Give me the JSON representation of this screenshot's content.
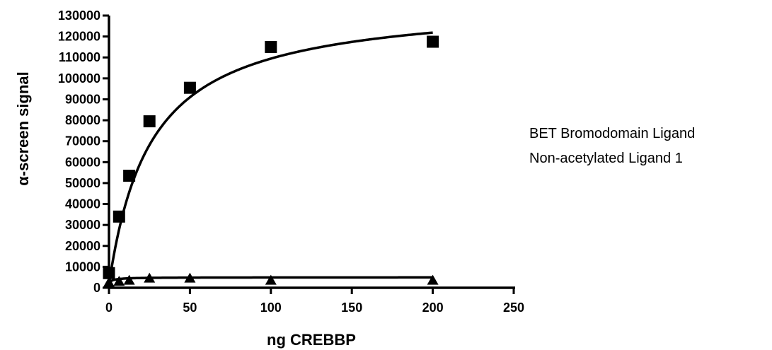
{
  "chart_data": {
    "type": "scatter",
    "xlabel": "ng CREBBP",
    "ylabel": "α-screen signal",
    "xlim": [
      0,
      250
    ],
    "ylim": [
      0,
      130000
    ],
    "xticks": [
      "0",
      "50",
      "100",
      "150",
      "200",
      "250"
    ],
    "yticks": [
      "0",
      "10000",
      "20000",
      "30000",
      "40000",
      "50000",
      "60000",
      "70000",
      "80000",
      "90000",
      "100000",
      "110000",
      "120000",
      "130000"
    ],
    "grid": false,
    "legend_position": "right",
    "series": [
      {
        "name": "BET Bromodomain Ligand",
        "marker": "square",
        "color": "#000000",
        "points": [
          [
            0,
            7000
          ],
          [
            6.25,
            34000
          ],
          [
            12.5,
            53500
          ],
          [
            25,
            79500
          ],
          [
            50,
            95500
          ],
          [
            100,
            115000
          ],
          [
            200,
            117500
          ]
        ],
        "fit": "saturation"
      },
      {
        "name": "Non-acetylated Ligand 1",
        "marker": "triangle",
        "color": "#000000",
        "points": [
          [
            0,
            2500
          ],
          [
            6.25,
            3000
          ],
          [
            12.5,
            3500
          ],
          [
            25,
            4500
          ],
          [
            50,
            4500
          ],
          [
            100,
            3500
          ],
          [
            200,
            3500
          ]
        ],
        "fit": "flat"
      }
    ]
  }
}
